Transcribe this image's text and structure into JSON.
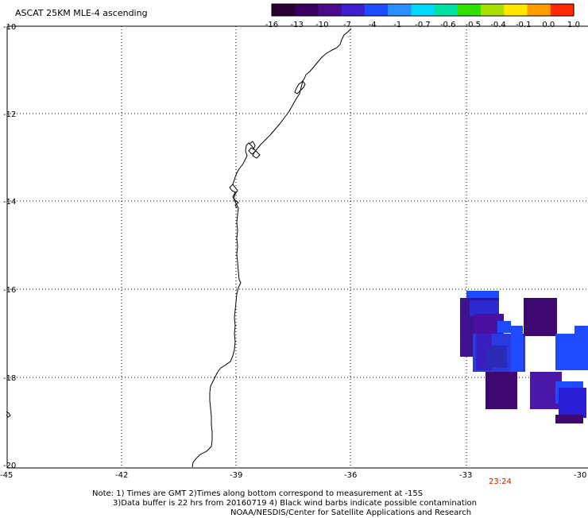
{
  "title": "ASCAT 25KM MLE-4 ascending",
  "colorbar": {
    "labels": [
      "-16",
      "-13",
      "-10",
      "-7",
      "-4",
      "-1",
      "-0.7",
      "-0.6",
      "-0.5",
      "-0.4",
      "-0.1",
      "0.0",
      "1.0"
    ],
    "colors": [
      "#2a0033",
      "#3a0060",
      "#4b0a8a",
      "#3d1fd0",
      "#1f4bff",
      "#2b8fff",
      "#00d8ff",
      "#00e0a0",
      "#33e000",
      "#a8e000",
      "#ffe800",
      "#ff9c00",
      "#ff2a00"
    ]
  },
  "axes": {
    "lat_labels": [
      "-10",
      "-12",
      "-14",
      "-16",
      "-18",
      "-20"
    ],
    "lon_labels": [
      "-45",
      "-42",
      "-39",
      "-36",
      "-33",
      "-30"
    ]
  },
  "time_label": "23:24",
  "notes": {
    "line1": "Note: 1) Times are GMT 2)Times along bottom correspond to measurement at -15S",
    "line2": "3)Data buffer is 22 hrs from 20160719 4) Black wind barbs indicate possible contamination",
    "line3": "NOAA/NESDIS/Center for Satellite Applications and Research"
  }
}
